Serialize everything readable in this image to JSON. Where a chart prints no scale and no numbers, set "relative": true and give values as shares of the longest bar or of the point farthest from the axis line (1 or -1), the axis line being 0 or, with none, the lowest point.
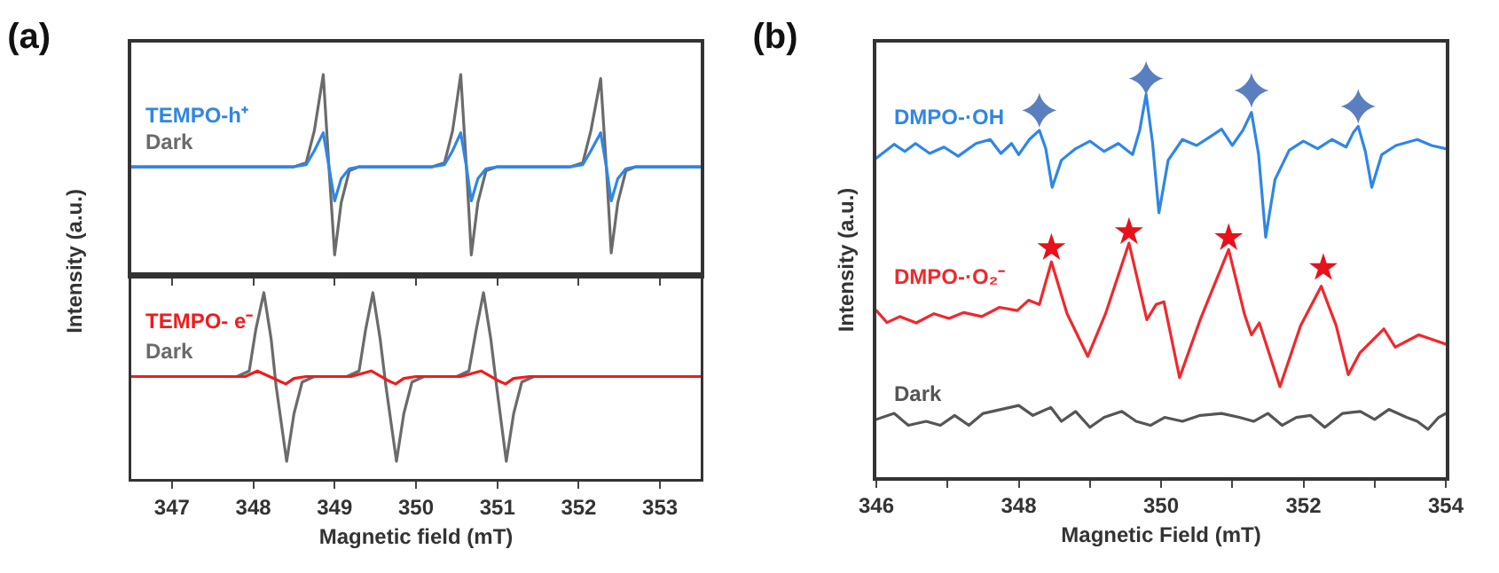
{
  "chart_data": [
    {
      "type": "line",
      "title": "(a)",
      "ylabel": "Intensity (a.u.)",
      "relative": true,
      "tick_labels": false,
      "xlim": [
        346.5,
        353.5
      ],
      "xticks": [
        347,
        348,
        349,
        350,
        351,
        352,
        353
      ],
      "series": [
        {
          "name": "Dark",
          "color": "#6b6b6b",
          "x": [
            346.5,
            348.5,
            348.65,
            348.75,
            348.86,
            348.93,
            349.0,
            349.08,
            349.18,
            349.3,
            350.2,
            350.35,
            350.45,
            350.55,
            350.62,
            350.68,
            350.76,
            350.86,
            351.0,
            351.9,
            352.05,
            352.15,
            352.27,
            352.34,
            352.4,
            352.48,
            352.58,
            352.7,
            353.5
          ],
          "values": [
            0.54,
            0.54,
            0.56,
            0.72,
            1.0,
            0.54,
            0.1,
            0.36,
            0.52,
            0.54,
            0.54,
            0.56,
            0.72,
            1.0,
            0.54,
            0.1,
            0.36,
            0.52,
            0.54,
            0.54,
            0.56,
            0.72,
            0.98,
            0.54,
            0.11,
            0.36,
            0.52,
            0.54,
            0.54
          ]
        },
        {
          "name": "TEMPO-h⁺",
          "color": "#2f86e6",
          "x": [
            346.5,
            348.5,
            348.65,
            348.75,
            348.86,
            348.93,
            349.0,
            349.08,
            349.18,
            349.3,
            350.2,
            350.35,
            350.45,
            350.55,
            350.62,
            350.68,
            350.76,
            350.86,
            351.0,
            351.9,
            352.05,
            352.15,
            352.27,
            352.34,
            352.4,
            352.48,
            352.58,
            352.7,
            353.5
          ],
          "values": [
            0.54,
            0.54,
            0.55,
            0.62,
            0.71,
            0.54,
            0.37,
            0.48,
            0.53,
            0.54,
            0.54,
            0.55,
            0.62,
            0.71,
            0.54,
            0.37,
            0.48,
            0.53,
            0.54,
            0.54,
            0.55,
            0.62,
            0.71,
            0.54,
            0.37,
            0.48,
            0.53,
            0.54,
            0.54
          ]
        }
      ]
    },
    {
      "type": "line",
      "xlabel": "Magnetic field (mT)",
      "relative": true,
      "tick_labels": "x",
      "xlim": [
        346.5,
        353.5
      ],
      "xticks": [
        347,
        348,
        349,
        350,
        351,
        352,
        353
      ],
      "series": [
        {
          "name": "Dark",
          "color": "#6b6b6b",
          "x": [
            346.5,
            347.8,
            347.95,
            348.03,
            348.13,
            348.22,
            348.28,
            348.41,
            348.5,
            348.6,
            348.75,
            349.15,
            349.3,
            349.38,
            349.47,
            349.56,
            349.63,
            349.76,
            349.85,
            349.95,
            350.1,
            350.5,
            350.65,
            350.74,
            350.83,
            350.92,
            350.99,
            351.11,
            351.2,
            351.3,
            351.45,
            353.5
          ],
          "values": [
            0.55,
            0.55,
            0.58,
            0.8,
            1.0,
            0.75,
            0.5,
            0.095,
            0.35,
            0.52,
            0.55,
            0.55,
            0.58,
            0.8,
            1.0,
            0.75,
            0.5,
            0.095,
            0.35,
            0.52,
            0.55,
            0.55,
            0.58,
            0.8,
            1.0,
            0.75,
            0.5,
            0.095,
            0.35,
            0.52,
            0.55,
            0.55
          ]
        },
        {
          "name": "TEMPO- e⁻",
          "color": "#f01c1c",
          "x": [
            346.5,
            347.9,
            348.05,
            348.3,
            348.4,
            348.5,
            348.65,
            349.2,
            349.45,
            349.65,
            349.75,
            349.85,
            350.0,
            350.55,
            350.8,
            351.0,
            351.1,
            351.2,
            351.4,
            353.5
          ],
          "values": [
            0.55,
            0.55,
            0.58,
            0.53,
            0.51,
            0.54,
            0.55,
            0.55,
            0.58,
            0.53,
            0.51,
            0.54,
            0.55,
            0.55,
            0.58,
            0.53,
            0.51,
            0.54,
            0.55,
            0.55
          ]
        }
      ]
    },
    {
      "type": "line",
      "title": "(b)",
      "xlabel": "Magnetic Field (mT)",
      "ylabel": "Intensity (a.u.)",
      "relative": true,
      "xlim": [
        346,
        354
      ],
      "xticks": [
        346,
        {
          "value": 347,
          "label": null
        },
        348,
        {
          "value": 349,
          "label": null
        },
        350,
        {
          "value": 351,
          "label": null
        },
        352,
        {
          "value": 353,
          "label": null
        },
        354
      ],
      "series": [
        {
          "name": "DMPO-·OH",
          "color": "#2f86e6",
          "x": [
            346.0,
            346.25,
            346.4,
            346.55,
            346.75,
            346.95,
            347.15,
            347.4,
            347.6,
            347.75,
            347.9,
            348.0,
            348.15,
            348.29,
            348.38,
            348.47,
            348.6,
            348.8,
            349.0,
            349.2,
            349.4,
            349.6,
            349.7,
            349.79,
            349.88,
            349.97,
            350.1,
            350.3,
            350.5,
            350.7,
            350.85,
            351.0,
            351.15,
            351.27,
            351.37,
            351.47,
            351.6,
            351.8,
            352.0,
            352.2,
            352.4,
            352.6,
            352.7,
            352.77,
            352.87,
            352.96,
            353.1,
            353.3,
            353.6,
            353.8,
            354.0
          ],
          "values": [
            0.8,
            0.835,
            0.817,
            0.837,
            0.812,
            0.828,
            0.805,
            0.837,
            0.847,
            0.812,
            0.837,
            0.809,
            0.847,
            0.87,
            0.824,
            0.727,
            0.795,
            0.824,
            0.843,
            0.817,
            0.837,
            0.809,
            0.87,
            0.96,
            0.84,
            0.663,
            0.795,
            0.847,
            0.832,
            0.855,
            0.873,
            0.832,
            0.87,
            0.915,
            0.81,
            0.602,
            0.746,
            0.82,
            0.843,
            0.824,
            0.847,
            0.828,
            0.864,
            0.88,
            0.817,
            0.727,
            0.809,
            0.832,
            0.847,
            0.832,
            0.824
          ]
        },
        {
          "name": "DMPO-·O₂⁻",
          "color": "#f0282d",
          "x": [
            346.0,
            346.15,
            346.33,
            346.56,
            346.81,
            347.02,
            347.23,
            347.48,
            347.73,
            347.98,
            348.14,
            348.29,
            348.46,
            348.68,
            348.97,
            349.22,
            349.55,
            349.8,
            349.93,
            350.04,
            350.26,
            350.55,
            350.95,
            351.17,
            351.27,
            351.38,
            351.67,
            351.96,
            352.25,
            352.46,
            352.63,
            352.79,
            353.13,
            353.29,
            353.62,
            354.0
          ],
          "values": [
            0.418,
            0.388,
            0.403,
            0.387,
            0.41,
            0.398,
            0.413,
            0.403,
            0.426,
            0.418,
            0.444,
            0.433,
            0.54,
            0.41,
            0.303,
            0.41,
            0.587,
            0.395,
            0.433,
            0.44,
            0.25,
            0.395,
            0.571,
            0.41,
            0.357,
            0.387,
            0.227,
            0.38,
            0.479,
            0.38,
            0.257,
            0.311,
            0.372,
            0.326,
            0.357,
            0.334
          ]
        },
        {
          "name": "Dark",
          "color": "#555555",
          "x": [
            346.0,
            346.25,
            346.45,
            346.7,
            346.9,
            347.1,
            347.3,
            347.5,
            347.75,
            348.0,
            348.2,
            348.45,
            348.6,
            348.8,
            349.0,
            349.2,
            349.45,
            349.65,
            349.85,
            350.05,
            350.3,
            350.55,
            350.85,
            351.1,
            351.3,
            351.5,
            351.7,
            351.9,
            352.1,
            352.3,
            352.55,
            352.8,
            353.0,
            353.2,
            353.45,
            353.6,
            353.75,
            353.9,
            354.0
          ],
          "values": [
            0.145,
            0.16,
            0.13,
            0.14,
            0.13,
            0.155,
            0.13,
            0.16,
            0.17,
            0.18,
            0.155,
            0.175,
            0.14,
            0.165,
            0.125,
            0.15,
            0.165,
            0.14,
            0.13,
            0.15,
            0.14,
            0.155,
            0.16,
            0.15,
            0.14,
            0.16,
            0.13,
            0.15,
            0.155,
            0.125,
            0.16,
            0.165,
            0.145,
            0.17,
            0.15,
            0.14,
            0.12,
            0.15,
            0.16
          ]
        },
        {
          "type": "scatter",
          "marker": "cross",
          "color": "#5a7fc0",
          "x": [
            348.29,
            349.79,
            351.27,
            352.77
          ],
          "values": [
            0.92,
            1.0,
            0.97,
            0.93
          ]
        },
        {
          "type": "scatter",
          "marker": "star",
          "color": "#e8101a",
          "x": [
            348.46,
            349.55,
            350.95,
            352.28
          ],
          "values": [
            0.575,
            0.615,
            0.6,
            0.525
          ]
        }
      ]
    }
  ]
}
